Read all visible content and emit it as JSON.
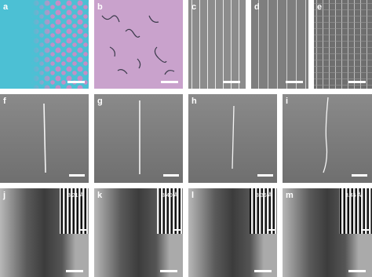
{
  "panels": [
    {
      "label": "a"
    },
    {
      "label": "b"
    },
    {
      "label": "c"
    },
    {
      "label": "d"
    },
    {
      "label": "e"
    },
    {
      "label": "f"
    },
    {
      "label": "g"
    },
    {
      "label": "h"
    },
    {
      "label": "i"
    },
    {
      "label": "j"
    },
    {
      "label": "k"
    },
    {
      "label": "l"
    },
    {
      "label": "m"
    }
  ],
  "insets": [
    {
      "label": "3.21 Å"
    },
    {
      "label": "3.40 Å"
    },
    {
      "label": "3.36 Å"
    },
    {
      "label": "3.45 Å"
    }
  ]
}
